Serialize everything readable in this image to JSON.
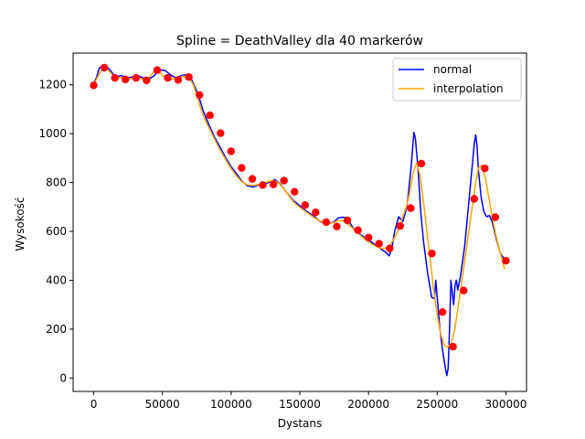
{
  "chart_data": {
    "type": "line",
    "title": "Spline = DeathValley dla 40 markerów",
    "xlabel": "Dystans",
    "ylabel": "Wysokość",
    "xlim": [
      -15000,
      315000
    ],
    "ylim": [
      -55,
      1330
    ],
    "xticks": [
      0,
      50000,
      100000,
      150000,
      200000,
      250000,
      300000
    ],
    "xtick_labels": [
      "0",
      "50000",
      "100000",
      "150000",
      "200000",
      "250000",
      "300000"
    ],
    "yticks": [
      0,
      200,
      400,
      600,
      800,
      1000,
      1200
    ],
    "ytick_labels": [
      "0",
      "200",
      "400",
      "600",
      "800",
      "1000",
      "1200"
    ],
    "grid": false,
    "legend_position": "top-right",
    "colors": {
      "normal": "#0000ff",
      "interpolation": "#ffa500",
      "markers": "#ff0000"
    },
    "series": [
      {
        "name": "normal",
        "x": [
          0,
          2000,
          4000,
          6000,
          8000,
          10000,
          13000,
          16000,
          20000,
          24000,
          28000,
          32000,
          36000,
          40000,
          44000,
          48000,
          52000,
          56000,
          60000,
          64000,
          68000,
          70000,
          72000,
          76000,
          80000,
          84000,
          88000,
          92000,
          96000,
          100000,
          104000,
          108000,
          112000,
          116000,
          120000,
          124000,
          128000,
          132000,
          136000,
          140000,
          145000,
          150000,
          155000,
          160000,
          165000,
          170000,
          175000,
          178000,
          181000,
          184000,
          187000,
          190000,
          195000,
          200000,
          205000,
          210000,
          213000,
          215000,
          217000,
          219000,
          222000,
          225000,
          228000,
          231000,
          233000,
          234000,
          236000,
          238000,
          240000,
          243000,
          246000,
          248000,
          249000,
          250000,
          252000,
          254000,
          256000,
          257000,
          258000,
          259000,
          260000,
          261000,
          262000,
          263000,
          264000,
          265000,
          267000,
          270000,
          273000,
          276000,
          277000,
          278000,
          279000,
          280000,
          282000,
          284000,
          286000,
          288000,
          290000,
          293000,
          296000,
          299000
        ],
        "y": [
          1205,
          1230,
          1268,
          1278,
          1280,
          1272,
          1252,
          1232,
          1238,
          1228,
          1232,
          1238,
          1228,
          1222,
          1238,
          1262,
          1258,
          1240,
          1228,
          1238,
          1242,
          1236,
          1212,
          1160,
          1088,
          1035,
          985,
          945,
          902,
          865,
          835,
          805,
          786,
          782,
          790,
          792,
          802,
          812,
          792,
          762,
          728,
          705,
          682,
          664,
          640,
          628,
          640,
          655,
          658,
          655,
          630,
          605,
          584,
          565,
          545,
          525,
          512,
          500,
          530,
          600,
          660,
          640,
          700,
          860,
          1005,
          985,
          860,
          680,
          560,
          430,
          330,
          325,
          400,
          330,
          200,
          110,
          40,
          10,
          40,
          200,
          400,
          350,
          300,
          380,
          400,
          360,
          420,
          540,
          720,
          900,
          960,
          995,
          950,
          850,
          740,
          680,
          660,
          665,
          640,
          570,
          510,
          485
        ]
      },
      {
        "name": "interpolation",
        "x": [
          0,
          2500,
          5000,
          7500,
          10000,
          12500,
          15000,
          17500,
          20000,
          22500,
          25000,
          27500,
          30000,
          32500,
          35000,
          37500,
          40000,
          42500,
          45000,
          47500,
          50000,
          52500,
          55000,
          57500,
          60000,
          62500,
          65000,
          67500,
          70000,
          72500,
          75000,
          77500,
          80000,
          82500,
          85000,
          87500,
          90000,
          92500,
          95000,
          97500,
          100000,
          102500,
          105000,
          107500,
          110000,
          112500,
          115000,
          117500,
          120000,
          122500,
          125000,
          127500,
          130000,
          132500,
          135000,
          137500,
          140000,
          142500,
          145000,
          147500,
          150000,
          152500,
          155000,
          157500,
          160000,
          162500,
          165000,
          167500,
          170000,
          172500,
          175000,
          177500,
          180000,
          182500,
          185000,
          187500,
          190000,
          192500,
          195000,
          197500,
          200000,
          202500,
          205000,
          207500,
          210000,
          212500,
          215000,
          217500,
          220000,
          222500,
          225000,
          227500,
          230000,
          232500,
          235000,
          237500,
          240000,
          242500,
          245000,
          247500,
          250000,
          252500,
          255000,
          257500,
          260000,
          262500,
          265000,
          267500,
          270000,
          272500,
          275000,
          277500,
          280000,
          282500,
          285000,
          287500,
          290000,
          292500,
          295000,
          297500,
          299000
        ],
        "y": [
          1200,
          1228,
          1255,
          1265,
          1262,
          1248,
          1232,
          1228,
          1230,
          1228,
          1225,
          1226,
          1230,
          1228,
          1224,
          1222,
          1228,
          1245,
          1262,
          1255,
          1238,
          1230,
          1226,
          1224,
          1226,
          1230,
          1235,
          1236,
          1225,
          1200,
          1158,
          1110,
          1072,
          1040,
          1012,
          982,
          955,
          928,
          905,
          880,
          858,
          838,
          820,
          805,
          795,
          790,
          788,
          789,
          792,
          796,
          800,
          805,
          808,
          805,
          795,
          780,
          762,
          742,
          724,
          710,
          698,
          688,
          678,
          668,
          658,
          650,
          642,
          636,
          632,
          633,
          638,
          643,
          645,
          640,
          630,
          618,
          605,
          592,
          580,
          568,
          558,
          548,
          540,
          534,
          530,
          532,
          540,
          560,
          585,
          620,
          660,
          700,
          760,
          840,
          880,
          830,
          720,
          600,
          480,
          360,
          260,
          180,
          135,
          125,
          140,
          190,
          280,
          380,
          480,
          580,
          680,
          780,
          860,
          870,
          820,
          740,
          660,
          590,
          530,
          480,
          445
        ]
      }
    ],
    "markers": {
      "x": [
        0,
        7692,
        15385,
        23077,
        30769,
        38462,
        46154,
        53846,
        61538,
        69231,
        76923,
        84615,
        92308,
        100000,
        107692,
        115385,
        123077,
        130769,
        138462,
        146154,
        153846,
        161538,
        169231,
        176923,
        184615,
        192308,
        200000,
        207692,
        215385,
        223077,
        230769,
        238462,
        246154,
        253846,
        261538,
        269231,
        276923,
        284615,
        292308,
        300000
      ],
      "y": [
        1198,
        1270,
        1228,
        1222,
        1228,
        1218,
        1260,
        1228,
        1220,
        1232,
        1158,
        1075,
        1002,
        928,
        860,
        815,
        790,
        792,
        808,
        762,
        708,
        678,
        638,
        620,
        645,
        605,
        575,
        550,
        530,
        622,
        695,
        878,
        510,
        270,
        128,
        358,
        733,
        858,
        658,
        480
      ]
    }
  }
}
